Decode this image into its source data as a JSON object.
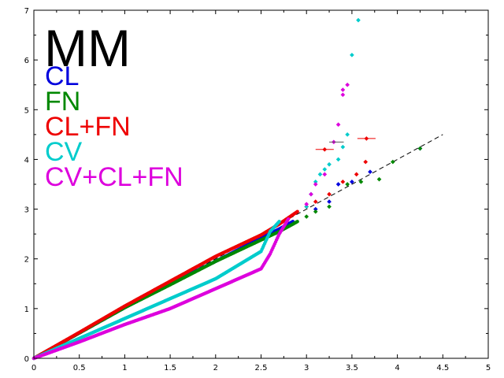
{
  "chart_data": {
    "type": "scatter",
    "title": "MM",
    "xlabel": "",
    "ylabel": "",
    "xlim": [
      0,
      5
    ],
    "ylim": [
      0,
      7
    ],
    "x_ticks": [
      "0",
      "0.5",
      "1",
      "1.5",
      "2",
      "2.5",
      "3",
      "3.5",
      "4",
      "4.5",
      "5"
    ],
    "y_ticks": [
      "0",
      "1",
      "2",
      "3",
      "4",
      "5",
      "6",
      "7"
    ],
    "grid": false,
    "legend_placement": "top-left",
    "reference_line": {
      "style": "dashed",
      "color": "#000000",
      "x": [
        0,
        4.5
      ],
      "y": [
        0,
        4.5
      ]
    },
    "series": [
      {
        "name": "CL",
        "color": "#0000dd",
        "curve": [
          [
            0,
            0
          ],
          [
            0.5,
            0.51
          ],
          [
            1,
            1.02
          ],
          [
            1.5,
            1.5
          ],
          [
            2,
            1.95
          ],
          [
            2.5,
            2.42
          ],
          [
            2.7,
            2.6
          ],
          [
            2.85,
            2.75
          ]
        ],
        "tail": [
          [
            3.1,
            3.0
          ],
          [
            3.25,
            3.15
          ],
          [
            3.35,
            3.5
          ],
          [
            3.5,
            3.55
          ],
          [
            3.7,
            3.75
          ],
          [
            4.25,
            4.22
          ]
        ]
      },
      {
        "name": "FN",
        "color": "#008800",
        "curve": [
          [
            0,
            0
          ],
          [
            0.5,
            0.51
          ],
          [
            1,
            1.02
          ],
          [
            1.5,
            1.48
          ],
          [
            2,
            1.95
          ],
          [
            2.5,
            2.38
          ],
          [
            2.7,
            2.55
          ],
          [
            2.9,
            2.75
          ]
        ],
        "tail": [
          [
            3.0,
            2.85
          ],
          [
            3.1,
            2.95
          ],
          [
            3.25,
            3.05
          ],
          [
            3.45,
            3.5
          ],
          [
            3.6,
            3.55
          ],
          [
            3.8,
            3.6
          ],
          [
            3.95,
            3.95
          ],
          [
            4.25,
            4.22
          ]
        ]
      },
      {
        "name": "CL+FN",
        "color": "#ee0000",
        "curve": [
          [
            0,
            0
          ],
          [
            0.5,
            0.52
          ],
          [
            1,
            1.05
          ],
          [
            1.5,
            1.55
          ],
          [
            2,
            2.05
          ],
          [
            2.5,
            2.48
          ],
          [
            2.7,
            2.7
          ],
          [
            2.9,
            2.95
          ]
        ],
        "tail": [
          [
            3.0,
            3.05
          ],
          [
            3.1,
            3.15
          ],
          [
            3.25,
            3.3
          ],
          [
            3.4,
            3.55
          ],
          [
            3.55,
            3.7
          ],
          [
            3.65,
            3.95
          ],
          [
            3.2,
            4.2
          ],
          [
            3.66,
            4.42
          ]
        ]
      },
      {
        "name": "CV",
        "color": "#00cccc",
        "curve": [
          [
            0,
            0
          ],
          [
            0.5,
            0.4
          ],
          [
            1,
            0.8
          ],
          [
            1.5,
            1.2
          ],
          [
            2,
            1.6
          ],
          [
            2.5,
            2.15
          ],
          [
            2.6,
            2.55
          ],
          [
            2.7,
            2.75
          ]
        ],
        "tail": [
          [
            3.0,
            3.05
          ],
          [
            3.05,
            3.3
          ],
          [
            3.1,
            3.55
          ],
          [
            3.15,
            3.7
          ],
          [
            3.2,
            3.8
          ],
          [
            3.25,
            3.9
          ],
          [
            3.35,
            4.0
          ],
          [
            3.4,
            4.25
          ],
          [
            3.45,
            4.5
          ],
          [
            3.5,
            6.1
          ],
          [
            3.57,
            6.8
          ]
        ]
      },
      {
        "name": "CV+CL+FN",
        "color": "#dd00dd",
        "curve": [
          [
            0,
            0
          ],
          [
            0.5,
            0.33
          ],
          [
            1,
            0.68
          ],
          [
            1.5,
            1.0
          ],
          [
            2,
            1.4
          ],
          [
            2.5,
            1.8
          ],
          [
            2.6,
            2.1
          ],
          [
            2.7,
            2.5
          ],
          [
            2.8,
            2.8
          ]
        ],
        "tail": [
          [
            3.0,
            3.1
          ],
          [
            3.05,
            3.3
          ],
          [
            3.1,
            3.5
          ],
          [
            3.2,
            3.7
          ],
          [
            3.3,
            4.35
          ],
          [
            3.35,
            4.7
          ],
          [
            3.4,
            5.4
          ],
          [
            3.45,
            5.5
          ],
          [
            3.4,
            5.3
          ]
        ]
      }
    ]
  }
}
